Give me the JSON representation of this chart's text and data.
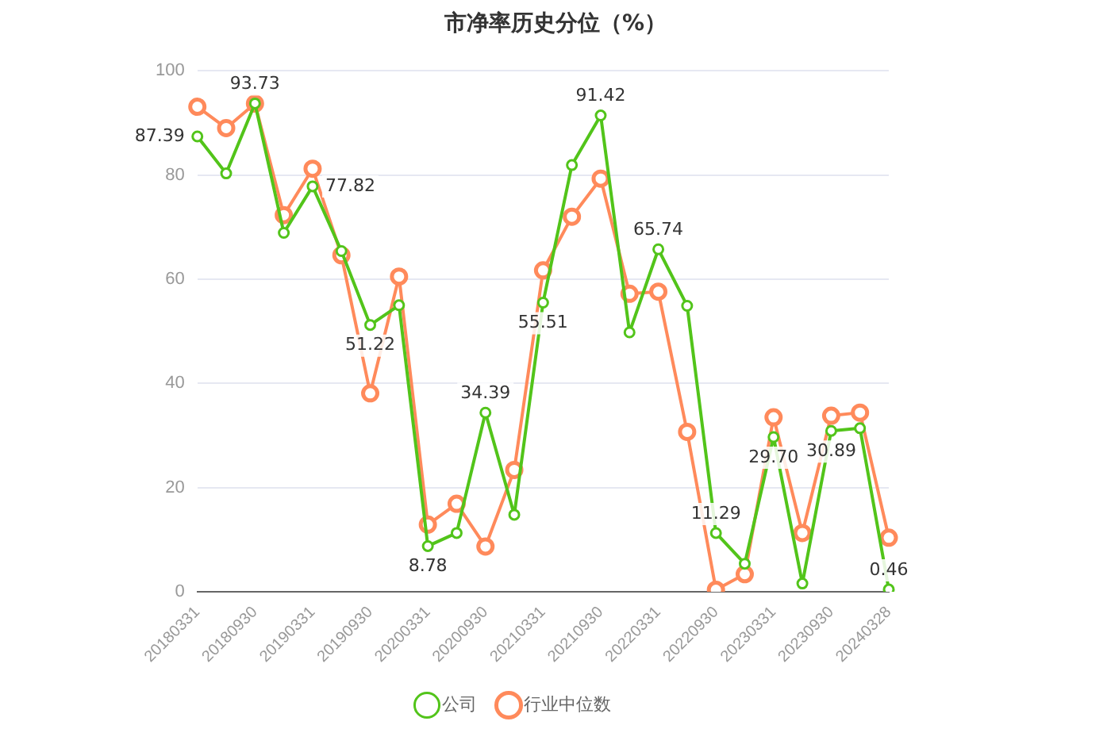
{
  "chart_data": {
    "type": "line",
    "title": "市净率历史分位（%）",
    "categories": [
      "20180331",
      null,
      "20180930",
      null,
      "20190331",
      null,
      "20190930",
      null,
      "20200331",
      null,
      "20200930",
      null,
      "20210331",
      null,
      "20210930",
      null,
      "20220331",
      null,
      "20220930",
      null,
      "20230331",
      null,
      "20230930",
      null,
      "20240328"
    ],
    "series": [
      {
        "name": "公司",
        "color": "#52c41a",
        "values": [
          87.39,
          80.3,
          93.73,
          68.9,
          77.82,
          65.4,
          51.22,
          55.0,
          8.78,
          11.3,
          34.39,
          14.8,
          55.51,
          81.9,
          91.42,
          49.8,
          65.74,
          54.9,
          11.29,
          5.4,
          29.7,
          1.6,
          30.89,
          31.4,
          0.46
        ],
        "value_labels": [
          "87.39",
          null,
          "93.73",
          null,
          "77.82",
          null,
          "51.22",
          null,
          "8.78",
          null,
          "34.39",
          null,
          "55.51",
          null,
          "91.42",
          null,
          "65.74",
          null,
          "11.29",
          null,
          "29.70",
          null,
          "30.89",
          null,
          "0.46"
        ]
      },
      {
        "name": "行业中位数",
        "color": "#ff8a5b",
        "values": [
          93.1,
          89.0,
          93.7,
          72.3,
          81.2,
          64.6,
          38.1,
          60.5,
          12.9,
          16.9,
          8.7,
          23.4,
          61.7,
          72.0,
          79.3,
          57.2,
          57.6,
          30.7,
          0.4,
          3.4,
          33.5,
          11.3,
          33.8,
          34.4,
          10.4
        ]
      }
    ],
    "ylim": [
      0,
      100
    ],
    "yticks": [
      0,
      20,
      40,
      60,
      80,
      100
    ],
    "grid": "y",
    "legend": "bottom",
    "marker": "circle",
    "line_style": "solid"
  }
}
